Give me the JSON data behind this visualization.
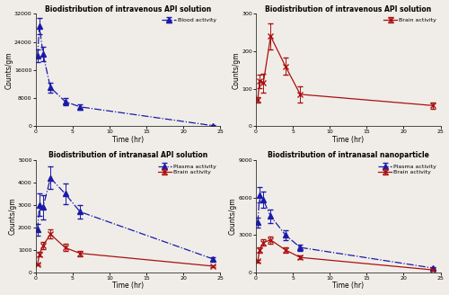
{
  "top_left": {
    "title": "Biodistribution of intravenous API solution",
    "xlabel": "Time (hr)",
    "ylabel": "Counts/gm",
    "ylim": [
      0,
      32000
    ],
    "yticks": [
      0,
      8000,
      16000,
      24000,
      32000
    ],
    "blood": {
      "x": [
        0.25,
        0.5,
        1,
        2,
        4,
        6,
        24
      ],
      "y": [
        20000,
        28500,
        20500,
        11000,
        7000,
        5500,
        150
      ],
      "yerr": [
        1800,
        2200,
        2000,
        1400,
        1100,
        700,
        80
      ],
      "label": "Blood activity",
      "color": "#1a1aaa",
      "linestyle": "-.",
      "marker": "^",
      "markersize": 4
    }
  },
  "top_right": {
    "title": "Biodistribution of intravenous API solution",
    "xlabel": "Time (hr)",
    "ylabel": "Counts/gm",
    "ylim": [
      0,
      300
    ],
    "yticks": [
      0,
      100,
      200,
      300
    ],
    "brain": {
      "x": [
        0.25,
        0.5,
        1,
        2,
        4,
        6,
        24
      ],
      "y": [
        70,
        120,
        115,
        240,
        160,
        85,
        55
      ],
      "yerr": [
        8,
        18,
        25,
        35,
        22,
        22,
        8
      ],
      "label": "Brain activity",
      "color": "#aa1111",
      "linestyle": "-",
      "marker": "x",
      "markersize": 4
    }
  },
  "bottom_left": {
    "title": "Biodistribution of intranasal API solution",
    "xlabel": "Time (hr)",
    "ylabel": "Counts/gm",
    "ylim": [
      0,
      5000
    ],
    "yticks": [
      0,
      1000,
      2000,
      3000,
      4000,
      5000
    ],
    "plasma": {
      "x": [
        0.25,
        0.5,
        1,
        2,
        4,
        6,
        24
      ],
      "y": [
        1900,
        3000,
        2900,
        4200,
        3500,
        2700,
        600
      ],
      "yerr": [
        250,
        500,
        550,
        500,
        450,
        300,
        80
      ],
      "label": "Plasma activity",
      "color": "#1a1aaa",
      "linestyle": "-.",
      "marker": "^",
      "markersize": 4
    },
    "brain": {
      "x": [
        0.25,
        0.5,
        1,
        2,
        4,
        6,
        24
      ],
      "y": [
        350,
        800,
        1200,
        1700,
        1100,
        850,
        280
      ],
      "yerr": [
        50,
        100,
        160,
        200,
        160,
        120,
        40
      ],
      "label": "Brain activity",
      "color": "#aa1111",
      "linestyle": "-",
      "marker": "x",
      "markersize": 4
    }
  },
  "bottom_right": {
    "title": "Biodistribution of intranasal nanoparticle",
    "xlabel": "Time (hr)",
    "ylabel": "Counts/gm",
    "ylim": [
      0,
      9000
    ],
    "yticks": [
      0,
      3000,
      6000,
      9000
    ],
    "plasma": {
      "x": [
        0.25,
        0.5,
        1,
        2,
        4,
        6,
        24
      ],
      "y": [
        4000,
        6200,
        5800,
        4500,
        3000,
        2000,
        350
      ],
      "yerr": [
        400,
        600,
        650,
        550,
        400,
        250,
        60
      ],
      "label": "Plasma activity",
      "color": "#1a1aaa",
      "linestyle": "-.",
      "marker": "^",
      "markersize": 4
    },
    "brain": {
      "x": [
        0.25,
        0.5,
        1,
        2,
        4,
        6,
        24
      ],
      "y": [
        900,
        1800,
        2400,
        2600,
        1800,
        1200,
        200
      ],
      "yerr": [
        100,
        200,
        280,
        300,
        220,
        160,
        35
      ],
      "label": "Brain activity",
      "color": "#aa1111",
      "linestyle": "-",
      "marker": "x",
      "markersize": 4
    }
  },
  "xticks": [
    0,
    5,
    10,
    15,
    20,
    25
  ],
  "xlim": [
    0,
    25
  ],
  "bg_color": "#f0ede8"
}
